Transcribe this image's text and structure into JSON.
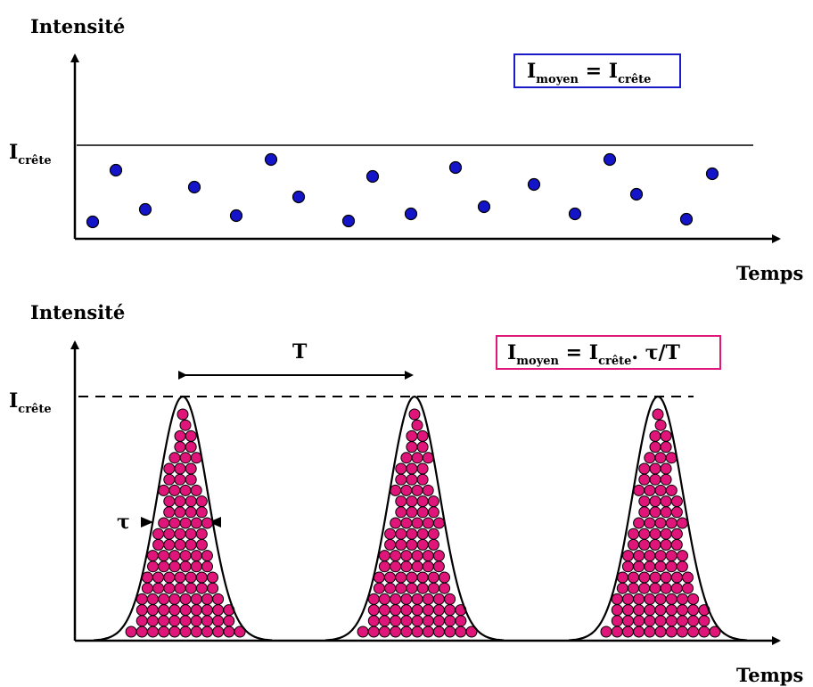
{
  "top_panel": {
    "y_axis_title": "Intensité",
    "x_axis_title": "Temps",
    "peak_label": {
      "main": "I",
      "sub": "crête"
    },
    "formula": {
      "lhs_main": "I",
      "lhs_sub": "moyen",
      "eq": " = ",
      "rhs_main": "I",
      "rhs_sub": "crête"
    },
    "formula_border_color": "#1a1ac8",
    "dot_color": "#1414c8",
    "dot_count": 20
  },
  "bottom_panel": {
    "y_axis_title": "Intensité",
    "x_axis_title": "Temps",
    "peak_label": {
      "main": "I",
      "sub": "crête"
    },
    "period_label": "T",
    "width_label": "τ",
    "formula": {
      "lhs_main": "I",
      "lhs_sub": "moyen",
      "eq": " = ",
      "rhs_main": "I",
      "rhs_sub": "crête",
      "tail": ". τ/T"
    },
    "formula_border_color": "#e0187a",
    "dot_color": "#e0157a",
    "pulse_count": 3
  }
}
